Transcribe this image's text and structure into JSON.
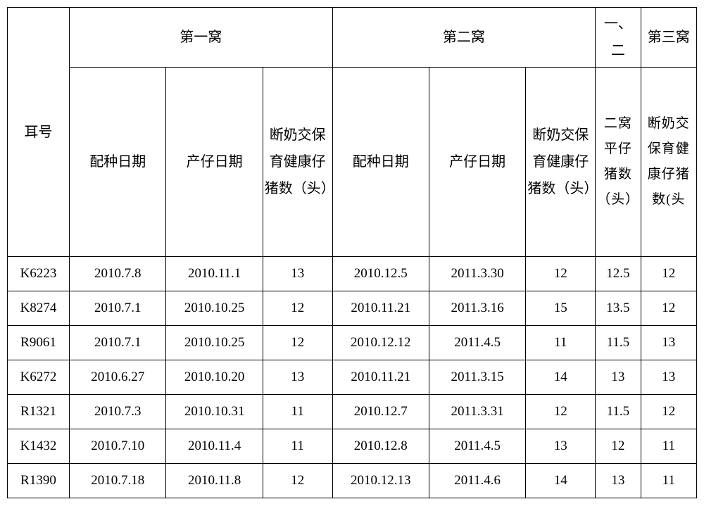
{
  "header": {
    "ear_label": "耳号",
    "litter1": "第一窝",
    "litter2": "第二窝",
    "col_avg_top": "一、二",
    "col_third_top": "第三窝",
    "breed_date": "配种日期",
    "farrow_date": "产仔日期",
    "weaned_count": "断奶交保育健康仔猪数（头）",
    "weaned_count_narrow": "断奶交保育健康仔猪数（头）",
    "avg_count": "二窝平仔猪数（头）",
    "third_weaned": "断奶交保育健康仔猪数(头"
  },
  "rows": [
    {
      "ear": "K6223",
      "b1": "2010.7.8",
      "f1": "2010.11.1",
      "w1": "13",
      "b2": "2010.12.5",
      "f2": "2011.3.30",
      "w2": "12",
      "avg": "12.5",
      "w3": "12"
    },
    {
      "ear": "K8274",
      "b1": "2010.7.1",
      "f1": "2010.10.25",
      "w1": "12",
      "b2": "2010.11.21",
      "f2": "2011.3.16",
      "w2": "15",
      "avg": "13.5",
      "w3": "12"
    },
    {
      "ear": "R9061",
      "b1": "2010.7.1",
      "f1": "2010.10.25",
      "w1": "12",
      "b2": "2010.12.12",
      "f2": "2011.4.5",
      "w2": "11",
      "avg": "11.5",
      "w3": "13"
    },
    {
      "ear": "K6272",
      "b1": "2010.6.27",
      "f1": "2010.10.20",
      "w1": "13",
      "b2": "2010.11.21",
      "f2": "2011.3.15",
      "w2": "14",
      "avg": "13",
      "w3": "13"
    },
    {
      "ear": "R1321",
      "b1": "2010.7.3",
      "f1": "2010.10.31",
      "w1": "11",
      "b2": "2010.12.7",
      "f2": "2011.3.31",
      "w2": "12",
      "avg": "11.5",
      "w3": "12"
    },
    {
      "ear": "K1432",
      "b1": "2010.7.10",
      "f1": "2010.11.4",
      "w1": "11",
      "b2": "2010.12.8",
      "f2": "2011.4.5",
      "w2": "13",
      "avg": "12",
      "w3": "11"
    },
    {
      "ear": "R1390",
      "b1": "2010.7.18",
      "f1": "2010.11.8",
      "w1": "12",
      "b2": "2010.12.13",
      "f2": "2011.4.6",
      "w2": "14",
      "avg": "13",
      "w3": "11"
    }
  ]
}
